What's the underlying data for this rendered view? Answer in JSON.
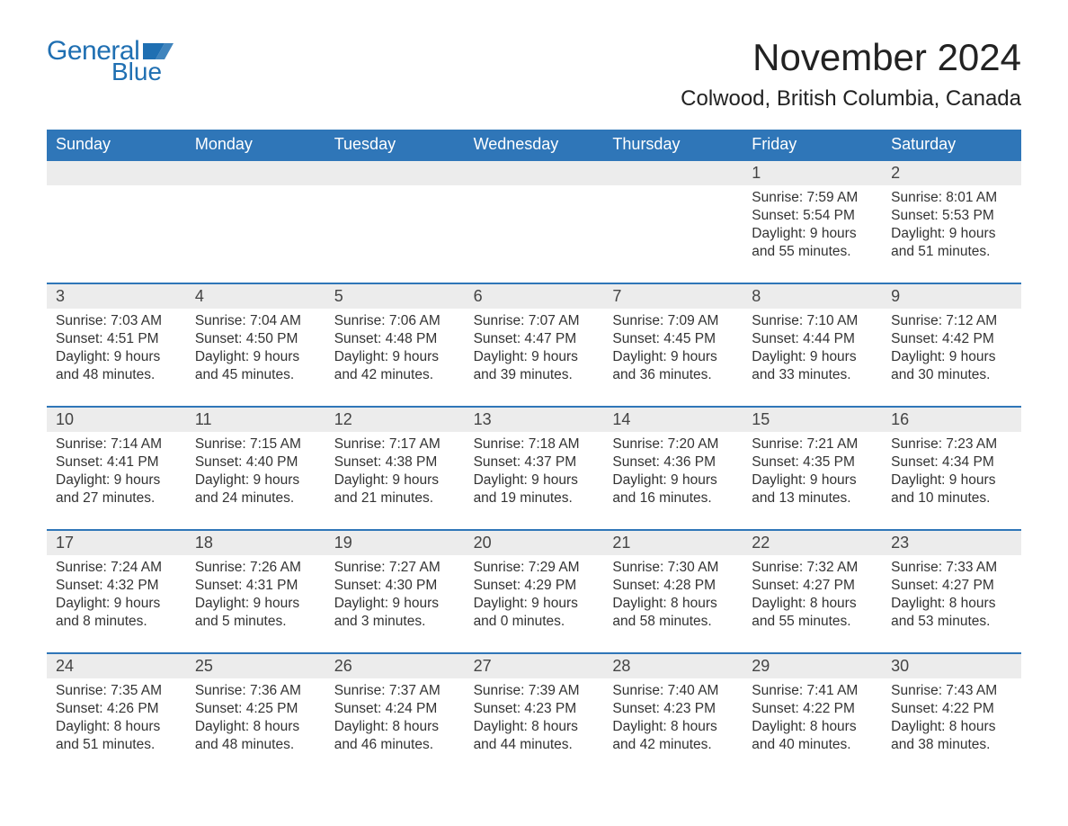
{
  "brand": {
    "word1": "General",
    "word2": "Blue",
    "flag_color": "#1f6fb2"
  },
  "title": "November 2024",
  "location": "Colwood, British Columbia, Canada",
  "colors": {
    "header_bg": "#2f76b8",
    "header_text": "#ffffff",
    "daynum_bg": "#ececec",
    "week_border": "#2f76b8",
    "body_text": "#333333",
    "page_bg": "#ffffff"
  },
  "typography": {
    "title_fontsize": 42,
    "location_fontsize": 24,
    "header_fontsize": 18,
    "daynum_fontsize": 18,
    "cell_fontsize": 15.5
  },
  "day_headers": [
    "Sunday",
    "Monday",
    "Tuesday",
    "Wednesday",
    "Thursday",
    "Friday",
    "Saturday"
  ],
  "weeks": [
    {
      "days": [
        {
          "num": "",
          "sunrise": "",
          "sunset": "",
          "daylight": ""
        },
        {
          "num": "",
          "sunrise": "",
          "sunset": "",
          "daylight": ""
        },
        {
          "num": "",
          "sunrise": "",
          "sunset": "",
          "daylight": ""
        },
        {
          "num": "",
          "sunrise": "",
          "sunset": "",
          "daylight": ""
        },
        {
          "num": "",
          "sunrise": "",
          "sunset": "",
          "daylight": ""
        },
        {
          "num": "1",
          "sunrise": "Sunrise: 7:59 AM",
          "sunset": "Sunset: 5:54 PM",
          "daylight": "Daylight: 9 hours and 55 minutes."
        },
        {
          "num": "2",
          "sunrise": "Sunrise: 8:01 AM",
          "sunset": "Sunset: 5:53 PM",
          "daylight": "Daylight: 9 hours and 51 minutes."
        }
      ]
    },
    {
      "days": [
        {
          "num": "3",
          "sunrise": "Sunrise: 7:03 AM",
          "sunset": "Sunset: 4:51 PM",
          "daylight": "Daylight: 9 hours and 48 minutes."
        },
        {
          "num": "4",
          "sunrise": "Sunrise: 7:04 AM",
          "sunset": "Sunset: 4:50 PM",
          "daylight": "Daylight: 9 hours and 45 minutes."
        },
        {
          "num": "5",
          "sunrise": "Sunrise: 7:06 AM",
          "sunset": "Sunset: 4:48 PM",
          "daylight": "Daylight: 9 hours and 42 minutes."
        },
        {
          "num": "6",
          "sunrise": "Sunrise: 7:07 AM",
          "sunset": "Sunset: 4:47 PM",
          "daylight": "Daylight: 9 hours and 39 minutes."
        },
        {
          "num": "7",
          "sunrise": "Sunrise: 7:09 AM",
          "sunset": "Sunset: 4:45 PM",
          "daylight": "Daylight: 9 hours and 36 minutes."
        },
        {
          "num": "8",
          "sunrise": "Sunrise: 7:10 AM",
          "sunset": "Sunset: 4:44 PM",
          "daylight": "Daylight: 9 hours and 33 minutes."
        },
        {
          "num": "9",
          "sunrise": "Sunrise: 7:12 AM",
          "sunset": "Sunset: 4:42 PM",
          "daylight": "Daylight: 9 hours and 30 minutes."
        }
      ]
    },
    {
      "days": [
        {
          "num": "10",
          "sunrise": "Sunrise: 7:14 AM",
          "sunset": "Sunset: 4:41 PM",
          "daylight": "Daylight: 9 hours and 27 minutes."
        },
        {
          "num": "11",
          "sunrise": "Sunrise: 7:15 AM",
          "sunset": "Sunset: 4:40 PM",
          "daylight": "Daylight: 9 hours and 24 minutes."
        },
        {
          "num": "12",
          "sunrise": "Sunrise: 7:17 AM",
          "sunset": "Sunset: 4:38 PM",
          "daylight": "Daylight: 9 hours and 21 minutes."
        },
        {
          "num": "13",
          "sunrise": "Sunrise: 7:18 AM",
          "sunset": "Sunset: 4:37 PM",
          "daylight": "Daylight: 9 hours and 19 minutes."
        },
        {
          "num": "14",
          "sunrise": "Sunrise: 7:20 AM",
          "sunset": "Sunset: 4:36 PM",
          "daylight": "Daylight: 9 hours and 16 minutes."
        },
        {
          "num": "15",
          "sunrise": "Sunrise: 7:21 AM",
          "sunset": "Sunset: 4:35 PM",
          "daylight": "Daylight: 9 hours and 13 minutes."
        },
        {
          "num": "16",
          "sunrise": "Sunrise: 7:23 AM",
          "sunset": "Sunset: 4:34 PM",
          "daylight": "Daylight: 9 hours and 10 minutes."
        }
      ]
    },
    {
      "days": [
        {
          "num": "17",
          "sunrise": "Sunrise: 7:24 AM",
          "sunset": "Sunset: 4:32 PM",
          "daylight": "Daylight: 9 hours and 8 minutes."
        },
        {
          "num": "18",
          "sunrise": "Sunrise: 7:26 AM",
          "sunset": "Sunset: 4:31 PM",
          "daylight": "Daylight: 9 hours and 5 minutes."
        },
        {
          "num": "19",
          "sunrise": "Sunrise: 7:27 AM",
          "sunset": "Sunset: 4:30 PM",
          "daylight": "Daylight: 9 hours and 3 minutes."
        },
        {
          "num": "20",
          "sunrise": "Sunrise: 7:29 AM",
          "sunset": "Sunset: 4:29 PM",
          "daylight": "Daylight: 9 hours and 0 minutes."
        },
        {
          "num": "21",
          "sunrise": "Sunrise: 7:30 AM",
          "sunset": "Sunset: 4:28 PM",
          "daylight": "Daylight: 8 hours and 58 minutes."
        },
        {
          "num": "22",
          "sunrise": "Sunrise: 7:32 AM",
          "sunset": "Sunset: 4:27 PM",
          "daylight": "Daylight: 8 hours and 55 minutes."
        },
        {
          "num": "23",
          "sunrise": "Sunrise: 7:33 AM",
          "sunset": "Sunset: 4:27 PM",
          "daylight": "Daylight: 8 hours and 53 minutes."
        }
      ]
    },
    {
      "days": [
        {
          "num": "24",
          "sunrise": "Sunrise: 7:35 AM",
          "sunset": "Sunset: 4:26 PM",
          "daylight": "Daylight: 8 hours and 51 minutes."
        },
        {
          "num": "25",
          "sunrise": "Sunrise: 7:36 AM",
          "sunset": "Sunset: 4:25 PM",
          "daylight": "Daylight: 8 hours and 48 minutes."
        },
        {
          "num": "26",
          "sunrise": "Sunrise: 7:37 AM",
          "sunset": "Sunset: 4:24 PM",
          "daylight": "Daylight: 8 hours and 46 minutes."
        },
        {
          "num": "27",
          "sunrise": "Sunrise: 7:39 AM",
          "sunset": "Sunset: 4:23 PM",
          "daylight": "Daylight: 8 hours and 44 minutes."
        },
        {
          "num": "28",
          "sunrise": "Sunrise: 7:40 AM",
          "sunset": "Sunset: 4:23 PM",
          "daylight": "Daylight: 8 hours and 42 minutes."
        },
        {
          "num": "29",
          "sunrise": "Sunrise: 7:41 AM",
          "sunset": "Sunset: 4:22 PM",
          "daylight": "Daylight: 8 hours and 40 minutes."
        },
        {
          "num": "30",
          "sunrise": "Sunrise: 7:43 AM",
          "sunset": "Sunset: 4:22 PM",
          "daylight": "Daylight: 8 hours and 38 minutes."
        }
      ]
    }
  ]
}
